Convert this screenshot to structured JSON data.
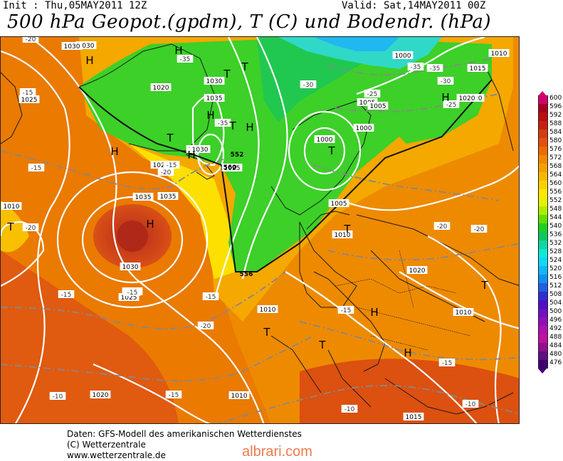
{
  "header": {
    "init": "Init : Thu,05MAY2011 12Z",
    "valid": "Valid: Sat,14MAY2011 00Z",
    "title": "500 hPa Geopot.(gpdm), T (C) und Bodendr. (hPa)"
  },
  "legend": {
    "values": [
      "600",
      "596",
      "592",
      "588",
      "584",
      "580",
      "576",
      "572",
      "568",
      "564",
      "560",
      "556",
      "552",
      "548",
      "544",
      "540",
      "536",
      "532",
      "528",
      "524",
      "520",
      "516",
      "512",
      "508",
      "504",
      "500",
      "496",
      "492",
      "488",
      "484",
      "480",
      "476"
    ],
    "colors": [
      "#d40071",
      "#a80020",
      "#b81010",
      "#c82010",
      "#d83a10",
      "#e45010",
      "#ee6a00",
      "#f08800",
      "#f4a000",
      "#f8b800",
      "#fcd000",
      "#fde800",
      "#e8f000",
      "#b0ec00",
      "#60e000",
      "#20d020",
      "#10c860",
      "#10d8a0",
      "#10e8d8",
      "#10d8f8",
      "#10b8f8",
      "#1090f0",
      "#2060e0",
      "#3030d0",
      "#5010c8",
      "#7010c0",
      "#9010b8",
      "#b010b0",
      "#c010a0",
      "#901090",
      "#601080",
      "#400070"
    ]
  },
  "map": {
    "pressure_labels": [
      "1030",
      "1025",
      "1020",
      "1035",
      "1030",
      "1030",
      "1025",
      "1030",
      "1025",
      "1035",
      "1035",
      "1030",
      "1025",
      "1030",
      "1020",
      "1010",
      "1030",
      "1000",
      "1005",
      "1005",
      "1000",
      "1000",
      "1005",
      "1020",
      "1015",
      "1010",
      "1010",
      "1010",
      "1020",
      "1010",
      "1010",
      "1015",
      "1020",
      "1010"
    ],
    "temp_labels": [
      "-20",
      "-15",
      "-15",
      "-20",
      "-35",
      "-35",
      "-30",
      "-35",
      "-35",
      "-25",
      "-30",
      "-25",
      "-20",
      "-15",
      "-15",
      "-20",
      "-15",
      "-20",
      "-20",
      "-15",
      "-15",
      "-15",
      "-10",
      "-10",
      "-15",
      "-10"
    ],
    "highs": [
      "H",
      "H",
      "H",
      "H",
      "H",
      "H",
      "H",
      "H",
      "H",
      "H"
    ],
    "lows": [
      "T",
      "T",
      "T",
      "T",
      "T",
      "T",
      "T",
      "T",
      "T",
      "T"
    ],
    "geopot_labels": [
      "552",
      "556",
      "560"
    ]
  },
  "footer": {
    "line1": "Daten: GFS-Modell des amerikanischen Wetterdienstes",
    "line2": "(C) Wetterzentrale",
    "line3": "www.wetterzentrale.de"
  },
  "watermark": "albrari.com"
}
